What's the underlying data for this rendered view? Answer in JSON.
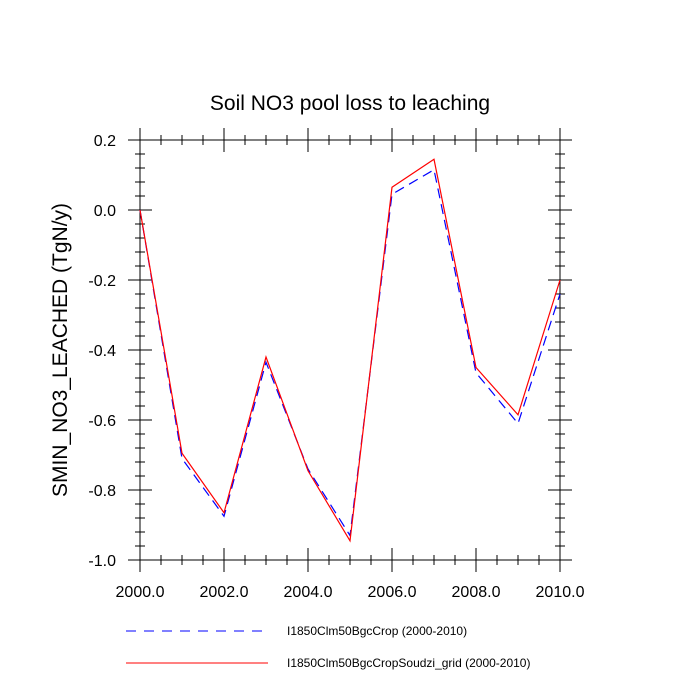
{
  "chart_data": {
    "type": "line",
    "title": "Soil NO3 pool loss to leaching",
    "xlabel": "",
    "ylabel": "SMIN_NO3_LEACHED  (TgN/y)",
    "xlim": [
      2000,
      2010
    ],
    "ylim": [
      -1.0,
      0.2
    ],
    "x": [
      2000,
      2001,
      2002,
      2003,
      2004,
      2005,
      2006,
      2007,
      2008,
      2009,
      2010
    ],
    "x_ticks": [
      2000,
      2002,
      2004,
      2006,
      2008,
      2010
    ],
    "x_tick_labels": [
      "2000.0",
      "2002.0",
      "2004.0",
      "2006.0",
      "2008.0",
      "2010.0"
    ],
    "y_ticks": [
      0.2,
      0.0,
      -0.2,
      -0.4,
      -0.6,
      -0.8,
      -1.0
    ],
    "y_tick_labels": [
      "0.2",
      "0.0",
      "-0.2",
      "-0.4",
      "-0.6",
      "-0.8",
      "-1.0"
    ],
    "grid": false,
    "legend_position": "bottom",
    "series": [
      {
        "name": "I1850Clm50BgcCrop (2000-2010)",
        "color": "#0000ff",
        "style": "dashed",
        "values": [
          0.0,
          -0.71,
          -0.875,
          -0.435,
          -0.74,
          -0.93,
          0.045,
          0.115,
          -0.465,
          -0.61,
          -0.24
        ]
      },
      {
        "name": "I1850Clm50BgcCropSoudzi_grid (2000-2010)",
        "color": "#ff0000",
        "style": "solid",
        "values": [
          0.0,
          -0.695,
          -0.865,
          -0.42,
          -0.745,
          -0.945,
          0.065,
          0.145,
          -0.45,
          -0.585,
          -0.2
        ]
      }
    ]
  }
}
